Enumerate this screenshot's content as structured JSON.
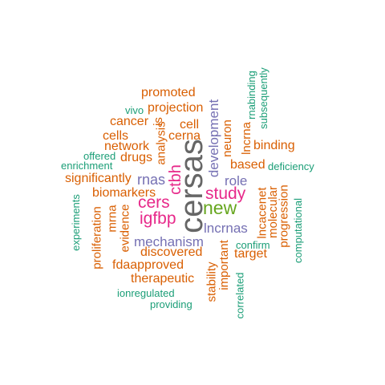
{
  "palette": {
    "orange": "#d95f02",
    "teal": "#1b9e77",
    "purple": "#7570b3",
    "magenta": "#e7298a",
    "green": "#66a61e",
    "gray": "#666666"
  },
  "words": [
    {
      "text": "cersas",
      "color": "gray"
    },
    {
      "text": "new",
      "color": "green"
    },
    {
      "text": "study",
      "color": "magenta"
    },
    {
      "text": "cers",
      "color": "magenta"
    },
    {
      "text": "igfbp",
      "color": "magenta"
    },
    {
      "text": "ctbh",
      "color": "magenta"
    },
    {
      "text": "rnas",
      "color": "purple"
    },
    {
      "text": "mechanism",
      "color": "purple"
    },
    {
      "text": "lncrnas",
      "color": "purple"
    },
    {
      "text": "role",
      "color": "purple"
    },
    {
      "text": "development",
      "color": "purple"
    },
    {
      "text": "promoted",
      "color": "orange"
    },
    {
      "text": "projection",
      "color": "orange"
    },
    {
      "text": "cancer",
      "color": "orange"
    },
    {
      "text": "cells",
      "color": "orange"
    },
    {
      "text": "network",
      "color": "orange"
    },
    {
      "text": "drugs",
      "color": "orange"
    },
    {
      "text": "is",
      "color": "orange"
    },
    {
      "text": "analysis",
      "color": "orange"
    },
    {
      "text": "cell",
      "color": "orange"
    },
    {
      "text": "cerna",
      "color": "orange"
    },
    {
      "text": "neuron",
      "color": "orange"
    },
    {
      "text": "lncrna",
      "color": "orange"
    },
    {
      "text": "binding",
      "color": "orange"
    },
    {
      "text": "based",
      "color": "orange"
    },
    {
      "text": "significantly",
      "color": "orange"
    },
    {
      "text": "biomarkers",
      "color": "orange"
    },
    {
      "text": "mrna",
      "color": "orange"
    },
    {
      "text": "evidence",
      "color": "orange"
    },
    {
      "text": "proliferation",
      "color": "orange"
    },
    {
      "text": "discovered",
      "color": "orange"
    },
    {
      "text": "fdaapproved",
      "color": "orange"
    },
    {
      "text": "therapeutic",
      "color": "orange"
    },
    {
      "text": "stability",
      "color": "orange"
    },
    {
      "text": "important",
      "color": "orange"
    },
    {
      "text": "target",
      "color": "orange"
    },
    {
      "text": "lncacenet",
      "color": "orange"
    },
    {
      "text": "molecular",
      "color": "orange"
    },
    {
      "text": "progression",
      "color": "orange"
    },
    {
      "text": "vivo",
      "color": "teal"
    },
    {
      "text": "offered",
      "color": "teal"
    },
    {
      "text": "enrichment",
      "color": "teal"
    },
    {
      "text": "rnabinding",
      "color": "teal"
    },
    {
      "text": "subsequently",
      "color": "teal"
    },
    {
      "text": "deficiency",
      "color": "teal"
    },
    {
      "text": "experiments",
      "color": "teal"
    },
    {
      "text": "confirm",
      "color": "teal"
    },
    {
      "text": "computational",
      "color": "teal"
    },
    {
      "text": "correlated",
      "color": "teal"
    },
    {
      "text": "ionregulated",
      "color": "teal"
    },
    {
      "text": "providing",
      "color": "teal"
    }
  ]
}
